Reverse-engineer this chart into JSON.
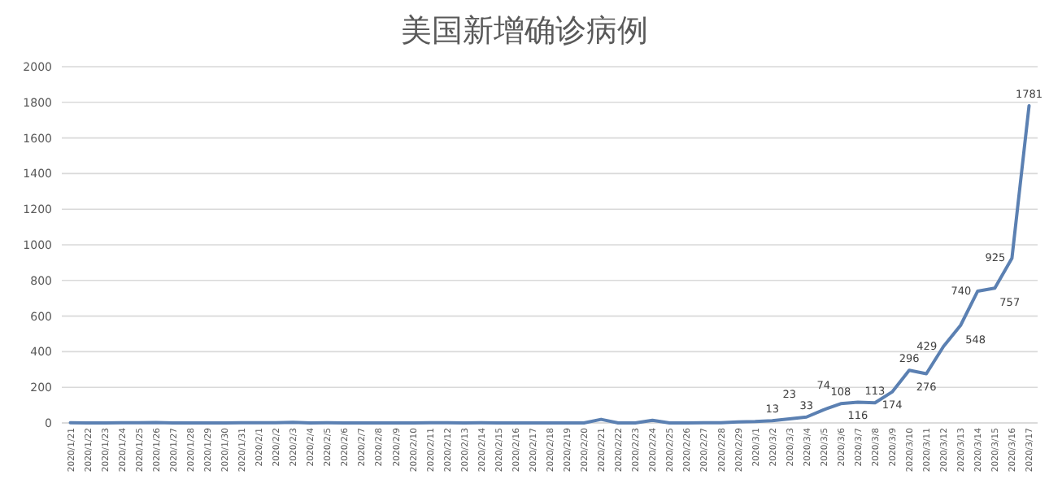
{
  "chart_data": {
    "type": "line",
    "title": "美国新增确诊病例",
    "categories": [
      "2020/1/21",
      "2020/1/22",
      "2020/1/23",
      "2020/1/24",
      "2020/1/25",
      "2020/1/26",
      "2020/1/27",
      "2020/1/28",
      "2020/1/29",
      "2020/1/30",
      "2020/1/31",
      "2020/2/1",
      "2020/2/2",
      "2020/2/3",
      "2020/2/4",
      "2020/2/5",
      "2020/2/6",
      "2020/2/7",
      "2020/2/8",
      "2020/2/9",
      "2020/2/10",
      "2020/2/11",
      "2020/2/12",
      "2020/2/13",
      "2020/2/14",
      "2020/2/15",
      "2020/2/16",
      "2020/2/17",
      "2020/2/18",
      "2020/2/19",
      "2020/2/20",
      "2020/2/21",
      "2020/2/22",
      "2020/2/23",
      "2020/2/24",
      "2020/2/25",
      "2020/2/26",
      "2020/2/27",
      "2020/2/28",
      "2020/2/29",
      "2020/3/1",
      "2020/3/2",
      "2020/3/3",
      "2020/3/4",
      "2020/3/5",
      "2020/3/6",
      "2020/3/7",
      "2020/3/8",
      "2020/3/9",
      "2020/3/10",
      "2020/3/11",
      "2020/3/12",
      "2020/3/13",
      "2020/3/14",
      "2020/3/15",
      "2020/3/16",
      "2020/3/17"
    ],
    "values": [
      1,
      0,
      0,
      1,
      1,
      2,
      0,
      0,
      0,
      0,
      1,
      1,
      1,
      3,
      0,
      1,
      0,
      0,
      0,
      0,
      0,
      1,
      1,
      0,
      1,
      0,
      0,
      0,
      0,
      0,
      0,
      20,
      0,
      0,
      15,
      0,
      0,
      1,
      1,
      6,
      8,
      13,
      23,
      33,
      74,
      108,
      116,
      113,
      174,
      296,
      276,
      429,
      548,
      740,
      757,
      925,
      1781
    ],
    "value_labels": [
      null,
      null,
      null,
      null,
      null,
      null,
      null,
      null,
      null,
      null,
      null,
      null,
      null,
      null,
      null,
      null,
      null,
      null,
      null,
      null,
      null,
      null,
      null,
      null,
      null,
      null,
      null,
      null,
      null,
      null,
      null,
      null,
      null,
      null,
      null,
      null,
      null,
      null,
      null,
      null,
      null,
      "13",
      "23",
      "33",
      "74",
      "108",
      "116",
      "113",
      "174",
      "296",
      "276",
      "429",
      "548",
      "740",
      "757",
      "925",
      "1781"
    ],
    "color": "#5b80b2",
    "ylim": [
      0,
      2000
    ],
    "yticks": [
      0,
      200,
      400,
      600,
      800,
      1000,
      1200,
      1400,
      1600,
      1800,
      2000
    ],
    "grid": "y",
    "marker": "none",
    "line_style": "solid"
  }
}
